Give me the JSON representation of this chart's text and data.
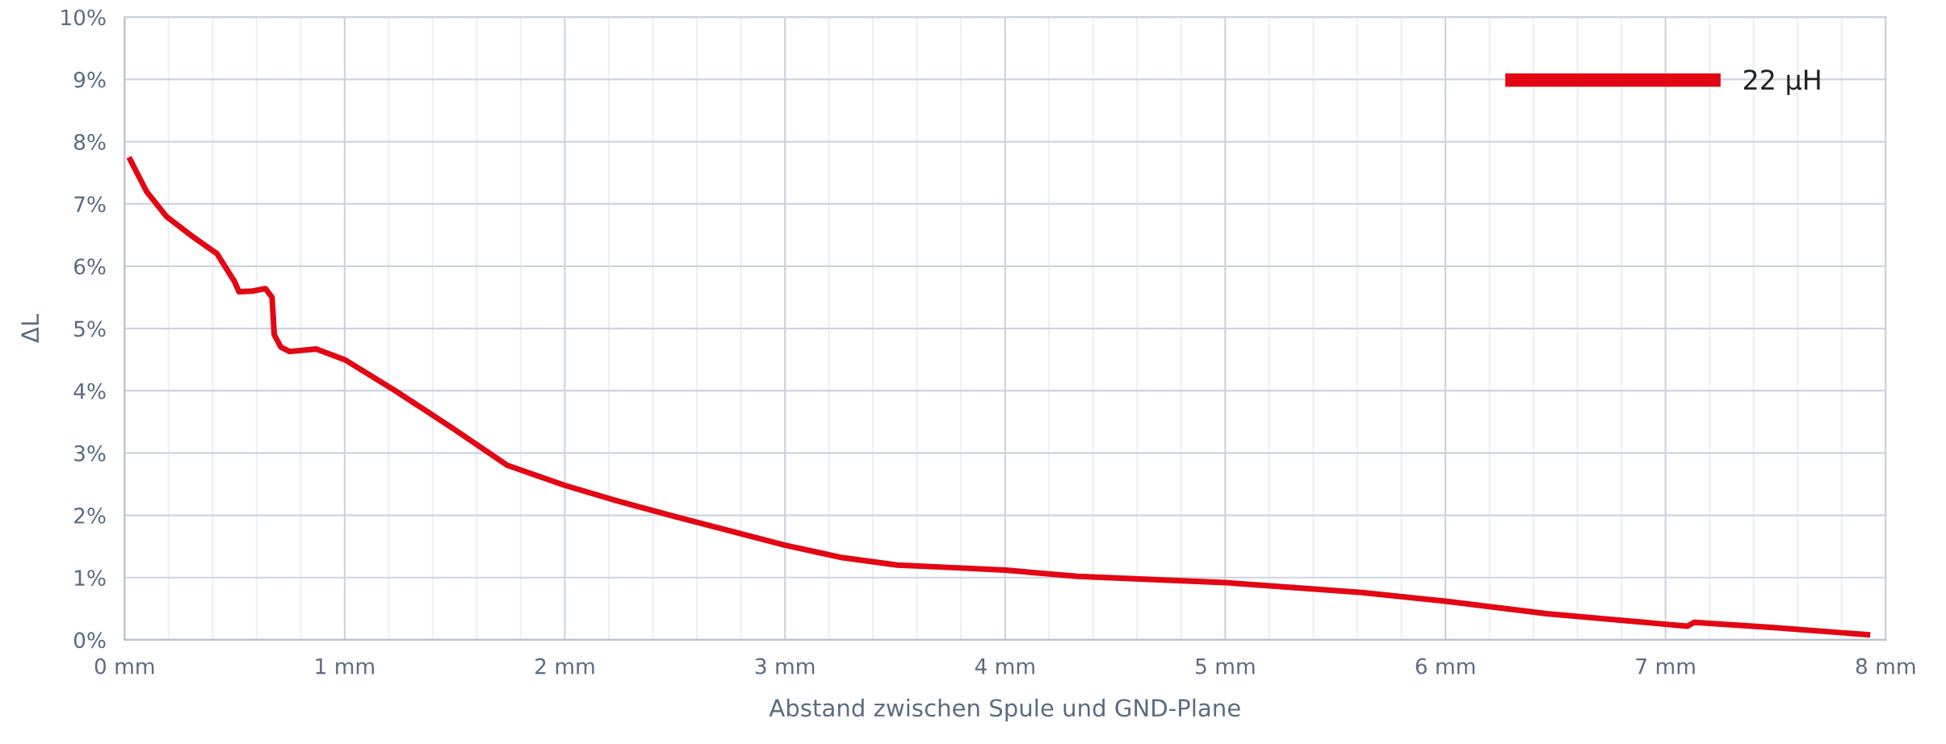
{
  "chart_data": {
    "type": "line",
    "xlabel": "Abstand zwischen Spule und GND-Plane",
    "ylabel": "ΔL",
    "xlim": [
      0,
      8
    ],
    "ylim": [
      0,
      10
    ],
    "xticks": [
      {
        "value": 0,
        "label": "0 mm"
      },
      {
        "value": 0.2,
        "label": null
      },
      {
        "value": 0.4,
        "label": null
      },
      {
        "value": 0.6,
        "label": null
      },
      {
        "value": 0.8,
        "label": null
      },
      {
        "value": 1,
        "label": "1 mm"
      },
      {
        "value": 1.2,
        "label": null
      },
      {
        "value": 1.4,
        "label": null
      },
      {
        "value": 1.6,
        "label": null
      },
      {
        "value": 1.8,
        "label": null
      },
      {
        "value": 2,
        "label": "2 mm"
      },
      {
        "value": 2.2,
        "label": null
      },
      {
        "value": 2.4,
        "label": null
      },
      {
        "value": 2.6,
        "label": null
      },
      {
        "value": 2.8,
        "label": null
      },
      {
        "value": 3,
        "label": "3 mm"
      },
      {
        "value": 3.2,
        "label": null
      },
      {
        "value": 3.4,
        "label": null
      },
      {
        "value": 3.6,
        "label": null
      },
      {
        "value": 3.8,
        "label": null
      },
      {
        "value": 4,
        "label": "4 mm"
      },
      {
        "value": 4.2,
        "label": null
      },
      {
        "value": 4.4,
        "label": null
      },
      {
        "value": 4.6,
        "label": null
      },
      {
        "value": 4.8,
        "label": null
      },
      {
        "value": 5,
        "label": "5 mm"
      },
      {
        "value": 5.2,
        "label": null
      },
      {
        "value": 5.4,
        "label": null
      },
      {
        "value": 5.6,
        "label": null
      },
      {
        "value": 5.8,
        "label": null
      },
      {
        "value": 6,
        "label": "6 mm"
      },
      {
        "value": 6.2,
        "label": null
      },
      {
        "value": 6.4,
        "label": null
      },
      {
        "value": 6.6,
        "label": null
      },
      {
        "value": 6.8,
        "label": null
      },
      {
        "value": 7,
        "label": "7 mm"
      },
      {
        "value": 7.2,
        "label": null
      },
      {
        "value": 7.4,
        "label": null
      },
      {
        "value": 7.6,
        "label": null
      },
      {
        "value": 7.8,
        "label": null
      },
      {
        "value": 8,
        "label": "8 mm"
      }
    ],
    "yticks": [
      {
        "value": 0,
        "label": "0%"
      },
      {
        "value": 1,
        "label": "1%"
      },
      {
        "value": 2,
        "label": "2%"
      },
      {
        "value": 3,
        "label": "3%"
      },
      {
        "value": 4,
        "label": "4%"
      },
      {
        "value": 5,
        "label": "5%"
      },
      {
        "value": 6,
        "label": "6%"
      },
      {
        "value": 7,
        "label": "7%"
      },
      {
        "value": 8,
        "label": "8%"
      },
      {
        "value": 9,
        "label": "9%"
      },
      {
        "value": 10,
        "label": "10%"
      }
    ],
    "grid": true,
    "legend": "top right",
    "marker": "none",
    "line_style": "solid",
    "series": [
      {
        "name": "22 µH",
        "color": "#e30613",
        "x": [
          0.02,
          0.1,
          0.19,
          0.3,
          0.42,
          0.5,
          0.52,
          0.58,
          0.64,
          0.67,
          0.68,
          0.71,
          0.75,
          0.87,
          1.0,
          1.23,
          1.49,
          1.74,
          2.0,
          2.25,
          2.5,
          2.75,
          3.0,
          3.26,
          3.51,
          3.76,
          4.0,
          4.33,
          5.0,
          5.62,
          6.0,
          6.46,
          6.97,
          7.1,
          7.13,
          7.48,
          7.93
        ],
        "values": [
          7.75,
          7.2,
          6.8,
          6.5,
          6.2,
          5.75,
          5.59,
          5.6,
          5.64,
          5.5,
          4.9,
          4.7,
          4.63,
          4.67,
          4.5,
          4.0,
          3.4,
          2.8,
          2.48,
          2.22,
          1.98,
          1.75,
          1.52,
          1.32,
          1.2,
          1.16,
          1.12,
          1.02,
          0.92,
          0.76,
          0.62,
          0.42,
          0.26,
          0.22,
          0.28,
          0.2,
          0.08
        ]
      }
    ]
  }
}
